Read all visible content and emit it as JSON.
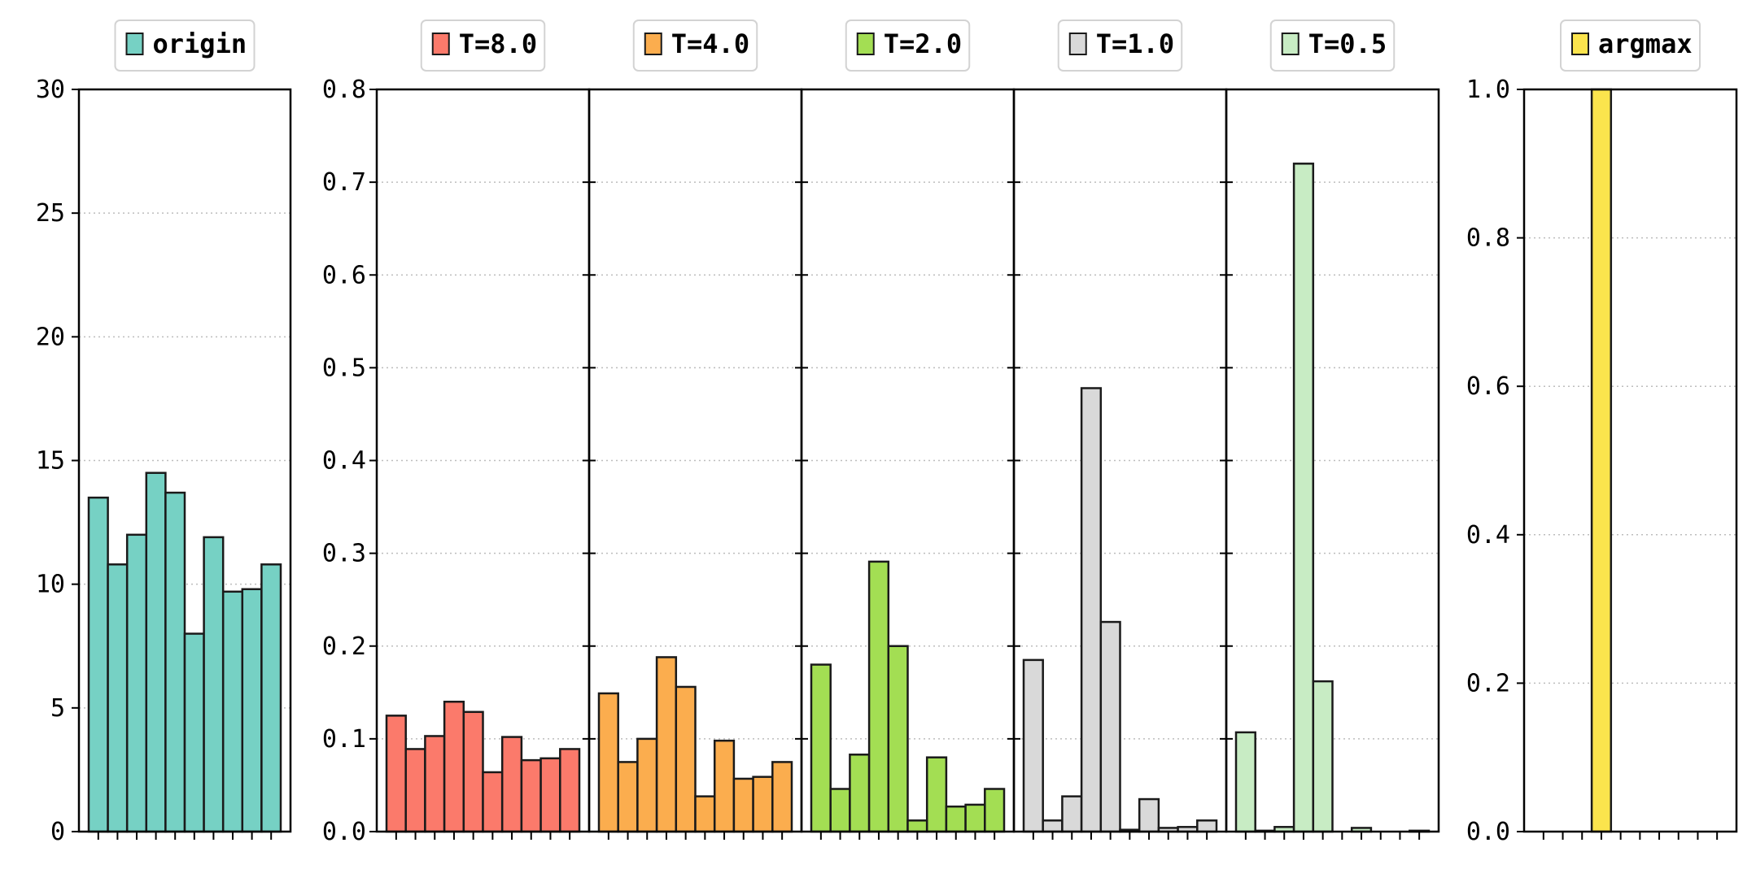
{
  "chart_data": [
    {
      "type": "bar",
      "ylim": [
        0,
        30
      ],
      "yticks": [
        "0",
        "5",
        "10",
        "15",
        "20",
        "25",
        "30"
      ],
      "ytick_values": [
        0,
        5,
        10,
        15,
        20,
        25,
        30
      ],
      "grid": "horizontal dotted",
      "legend": "top-center",
      "series": [
        {
          "name": "origin",
          "color": "#76d1c4",
          "values": [
            13.5,
            10.8,
            12.0,
            14.5,
            13.7,
            8.0,
            11.9,
            9.7,
            9.8,
            10.8
          ]
        }
      ]
    },
    {
      "type": "bar",
      "ylim": [
        0,
        0.8
      ],
      "yticks": [
        "0.0",
        "0.1",
        "0.2",
        "0.3",
        "0.4",
        "0.5",
        "0.6",
        "0.7",
        "0.8"
      ],
      "ytick_values": [
        0,
        0.1,
        0.2,
        0.3,
        0.4,
        0.5,
        0.6,
        0.7,
        0.8
      ],
      "grid": "horizontal dotted",
      "legend": "top-center",
      "shared_y_axis": true,
      "series": [
        {
          "name": "T=8.0",
          "color": "#fb7a6b",
          "values": [
            0.125,
            0.089,
            0.103,
            0.14,
            0.129,
            0.064,
            0.102,
            0.077,
            0.079,
            0.089
          ]
        },
        {
          "name": "T=4.0",
          "color": "#fbad4e",
          "values": [
            0.149,
            0.075,
            0.1,
            0.188,
            0.156,
            0.038,
            0.098,
            0.057,
            0.059,
            0.075
          ]
        },
        {
          "name": "T=2.0",
          "color": "#a3de53",
          "values": [
            0.18,
            0.046,
            0.083,
            0.291,
            0.2,
            0.012,
            0.08,
            0.027,
            0.029,
            0.046
          ]
        },
        {
          "name": "T=1.0",
          "color": "#d9d9d9",
          "values": [
            0.185,
            0.012,
            0.038,
            0.478,
            0.226,
            0.002,
            0.035,
            0.004,
            0.005,
            0.012
          ]
        },
        {
          "name": "T=0.5",
          "color": "#c8ecc4",
          "values": [
            0.107,
            0.001,
            0.005,
            0.72,
            0.162,
            0.0,
            0.004,
            0.0,
            0.0,
            0.001
          ]
        }
      ]
    },
    {
      "type": "bar",
      "ylim": [
        0,
        1.0
      ],
      "yticks": [
        "0.0",
        "0.2",
        "0.4",
        "0.6",
        "0.8",
        "1.0"
      ],
      "ytick_values": [
        0,
        0.2,
        0.4,
        0.6,
        0.8,
        1.0
      ],
      "grid": "horizontal dotted",
      "legend": "top-center",
      "series": [
        {
          "name": "argmax",
          "color": "#fbe44d",
          "values": [
            0,
            0,
            0,
            1.0,
            0,
            0,
            0,
            0,
            0,
            0
          ]
        }
      ]
    }
  ]
}
